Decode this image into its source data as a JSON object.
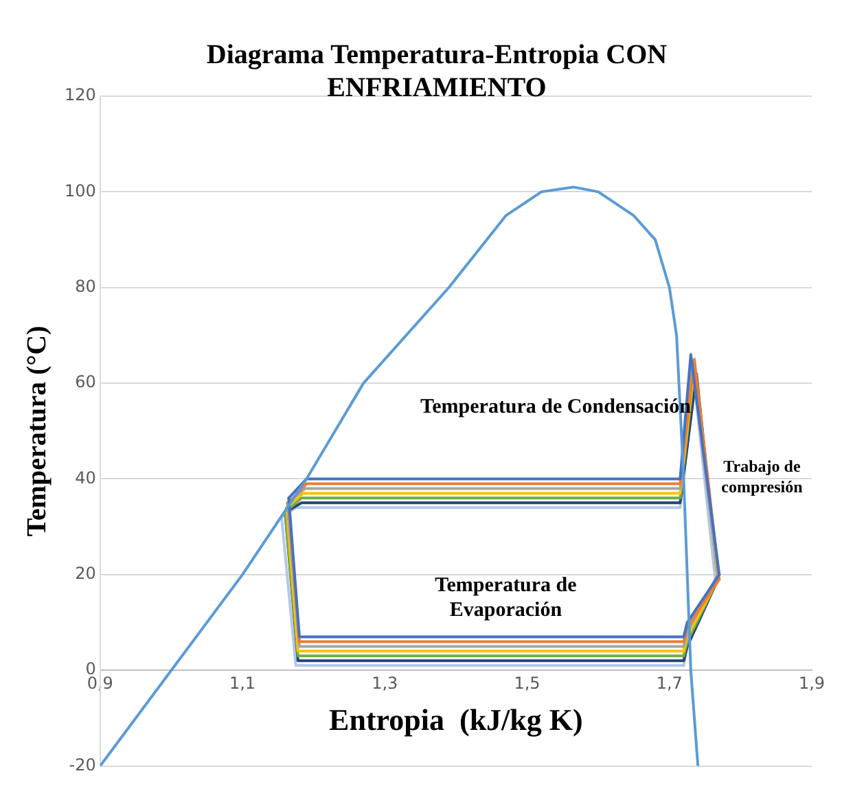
{
  "chart_data": {
    "type": "line",
    "title": "Diagrama Temperatura-Entropia CON ENFRIAMIENTO",
    "xlabel": "Entropia  (kJ/kg K)",
    "ylabel": "Temperatura (°C)",
    "xlim": [
      0.9,
      1.9
    ],
    "xticks": [
      {
        "value": 0.9,
        "label": "0,9"
      },
      {
        "value": 1.1,
        "label": "1,1"
      },
      {
        "value": 1.3,
        "label": "1,3"
      },
      {
        "value": 1.5,
        "label": "1,5"
      },
      {
        "value": 1.7,
        "label": "1,7"
      },
      {
        "value": 1.9,
        "label": "1,9"
      }
    ],
    "ylim": [
      -20,
      120
    ],
    "yticks": [
      -20,
      0,
      20,
      40,
      60,
      80,
      100,
      120
    ],
    "grid": "y",
    "legend": false,
    "marker": "none",
    "line_style": "solid",
    "annotations": [
      "Temperatura de Condensación",
      "Temperatura de\nEvaporación",
      "Trabajo de\ncompresión"
    ],
    "series": [
      {
        "color": "#5b9bd5",
        "x": [
          0.9,
          1.0,
          1.1,
          1.19,
          1.27,
          1.39,
          1.47,
          1.52,
          1.565,
          1.6,
          1.65,
          1.68,
          1.7,
          1.71,
          1.72,
          1.73,
          1.74
        ],
        "values": [
          -20,
          0,
          20,
          40,
          60,
          80,
          95,
          100,
          101,
          100,
          95,
          90,
          80,
          70,
          40,
          0,
          -20
        ]
      },
      {
        "color": "#4472c4",
        "x": [
          1.165,
          1.19,
          1.715,
          1.73,
          1.77
        ],
        "values": [
          36,
          40,
          40,
          66,
          20
        ]
      },
      {
        "color": "#4472c4",
        "x": [
          1.165,
          1.18,
          1.72,
          1.725,
          1.77
        ],
        "values": [
          36,
          7,
          7,
          10,
          20
        ]
      },
      {
        "color": "#ed7d31",
        "x": [
          1.165,
          1.19,
          1.715,
          1.735,
          1.77
        ],
        "values": [
          35,
          39,
          39,
          65,
          19
        ]
      },
      {
        "color": "#ed7d31",
        "x": [
          1.165,
          1.18,
          1.72,
          1.725,
          1.77
        ],
        "values": [
          35,
          6,
          6,
          9,
          19
        ]
      },
      {
        "color": "#a5a5a5",
        "x": [
          1.163,
          1.188,
          1.715,
          1.732,
          1.768
        ],
        "values": [
          35,
          38,
          38,
          64,
          20
        ]
      },
      {
        "color": "#a5a5a5",
        "x": [
          1.163,
          1.18,
          1.72,
          1.725,
          1.768
        ],
        "values": [
          35,
          5,
          5,
          8,
          20
        ]
      },
      {
        "color": "#ffc000",
        "x": [
          1.162,
          1.185,
          1.715,
          1.735,
          1.768
        ],
        "values": [
          34,
          37,
          37,
          64,
          19
        ]
      },
      {
        "color": "#ffc000",
        "x": [
          1.162,
          1.178,
          1.72,
          1.725,
          1.768
        ],
        "values": [
          34,
          4,
          4,
          7,
          19
        ]
      },
      {
        "color": "#70ad47",
        "x": [
          1.16,
          1.183,
          1.715,
          1.735,
          1.768
        ],
        "values": [
          33,
          36,
          36,
          63,
          19
        ]
      },
      {
        "color": "#70ad47",
        "x": [
          1.16,
          1.178,
          1.72,
          1.725,
          1.768
        ],
        "values": [
          33,
          3,
          3,
          6,
          19
        ]
      },
      {
        "color": "#264478",
        "x": [
          1.16,
          1.183,
          1.715,
          1.738,
          1.768
        ],
        "values": [
          33,
          35,
          35,
          62,
          19
        ]
      },
      {
        "color": "#264478",
        "x": [
          1.16,
          1.178,
          1.72,
          1.725,
          1.768
        ],
        "values": [
          33,
          2,
          2,
          5,
          19
        ]
      },
      {
        "color": "#b4c7e7",
        "x": [
          1.155,
          1.175,
          1.715,
          1.735,
          1.765
        ],
        "values": [
          32,
          34,
          34,
          60,
          18
        ]
      },
      {
        "color": "#b4c7e7",
        "x": [
          1.155,
          1.175,
          1.72,
          1.725,
          1.765
        ],
        "values": [
          32,
          1,
          1,
          5,
          18
        ]
      }
    ]
  }
}
